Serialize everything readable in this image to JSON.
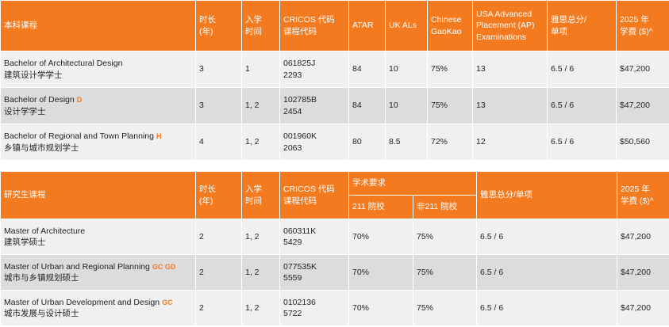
{
  "undergrad": {
    "headers": [
      "本科课程",
      "时长\n(年)",
      "入学\n时间",
      "CRICOS 代码\n课程代码",
      "ATAR",
      "UK ALs",
      "Chinese\nGaoKao",
      "USA Advanced\nPlacement (AP)\nExaminations",
      "雅思总分/\n单项",
      "2025 年\n学费 ($)^"
    ],
    "rows": [
      {
        "name_en": "Bachelor of Architectural Design",
        "tag": "",
        "name_zh": "建筑设计学学士",
        "duration": "3",
        "intake": "1",
        "cricos": "061825J",
        "code": "2293",
        "atar": "84",
        "ukal": "10",
        "gaokao": "75%",
        "ap": "13",
        "ielts": "6.5 / 6",
        "fee": "$47,200"
      },
      {
        "name_en": "Bachelor of Design",
        "tag": "D",
        "name_zh": "设计学学士",
        "duration": "3",
        "intake": "1, 2",
        "cricos": "102785B",
        "code": "2454",
        "atar": "84",
        "ukal": "10",
        "gaokao": "75%",
        "ap": "13",
        "ielts": "6.5 / 6",
        "fee": "$47,200"
      },
      {
        "name_en": "Bachelor of Regional and Town Planning",
        "tag": "H",
        "name_zh": "乡镇与城市规划学士",
        "duration": "4",
        "intake": "1, 2",
        "cricos": "001960K",
        "code": "2063",
        "atar": "80",
        "ukal": "8.5",
        "gaokao": "72%",
        "ap": "12",
        "ielts": "6.5 / 6",
        "fee": "$50,560"
      }
    ]
  },
  "postgrad": {
    "headers": [
      "研究生课程",
      "时长\n(年)",
      "入学\n时间",
      "CRICOS 代码\n课程代码",
      "学术要求",
      "211 院校",
      "非211 院校",
      "雅思总分/单项",
      "2025 年\n学费 ($)^"
    ],
    "rows": [
      {
        "name_en": "Master of Architecture",
        "tag": "",
        "name_zh": "建筑学硕士",
        "duration": "2",
        "intake": "1, 2",
        "cricos": "060311K",
        "code": "5429",
        "p211": "70%",
        "pnon211": "75%",
        "ielts": "6.5 / 6",
        "fee": "$47,200"
      },
      {
        "name_en": "Master of Urban and Regional Planning",
        "tag": "GC GD",
        "name_zh": "城市与乡镇规划硕士",
        "duration": "2",
        "intake": "1, 2",
        "cricos": "077535K",
        "code": "5559",
        "p211": "70%",
        "pnon211": "75%",
        "ielts": "6.5 / 6",
        "fee": "$47,200"
      },
      {
        "name_en": "Master of Urban Development and Design",
        "tag": "GC",
        "name_zh": "城市发展与设计硕士",
        "duration": "2",
        "intake": "1, 2",
        "cricos": "0102136",
        "code": "5722",
        "p211": "70%",
        "pnon211": "75%",
        "ielts": "6.5 / 6",
        "fee": "$47,200"
      }
    ]
  }
}
